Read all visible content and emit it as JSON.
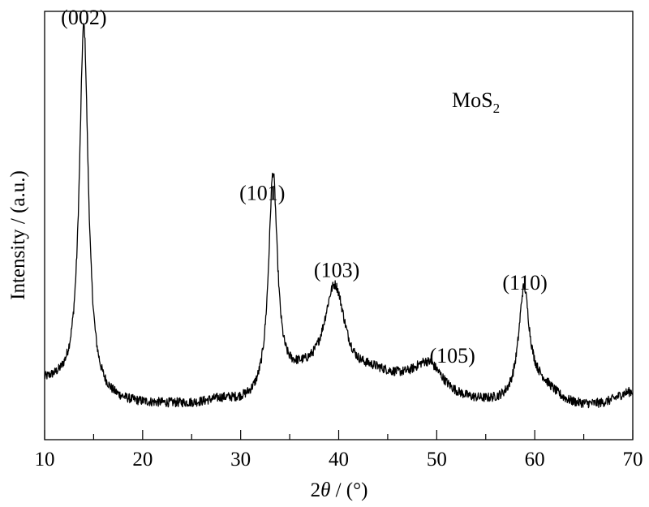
{
  "chart_data": {
    "type": "line",
    "xlabel_prefix": "2",
    "xlabel_symbol": "θ",
    "xlabel_suffix": " / (°)",
    "ylabel": "Intensity / (a.u.)",
    "xlim": [
      10,
      70
    ],
    "ylim": [
      0,
      1
    ],
    "x_ticks": [
      10,
      20,
      30,
      40,
      50,
      60,
      70
    ],
    "y_ticks_shown": false,
    "grid": false,
    "legend": "none",
    "series_label_main": "MoS",
    "series_label_sub": "2",
    "line_color": "#000000",
    "baseline": 0.08,
    "peaks": [
      {
        "label": "(002)",
        "x": 14.0,
        "height": 0.86,
        "width": 0.55,
        "label_x": 14.0,
        "label_y": 0.97
      },
      {
        "label": "(101)",
        "x": 33.3,
        "height": 0.51,
        "width": 0.55,
        "label_x": 32.2,
        "label_y": 0.56
      },
      {
        "label": "(103)",
        "x": 39.6,
        "height": 0.26,
        "width": 1.4,
        "label_x": 39.8,
        "label_y": 0.38
      },
      {
        "label": "(105)",
        "x": 49.2,
        "height": 0.085,
        "width": 2.0,
        "label_x": 51.6,
        "label_y": 0.18
      },
      {
        "label": "(110)",
        "x": 58.9,
        "height": 0.25,
        "width": 0.65,
        "label_x": 59.0,
        "label_y": 0.35
      }
    ]
  }
}
